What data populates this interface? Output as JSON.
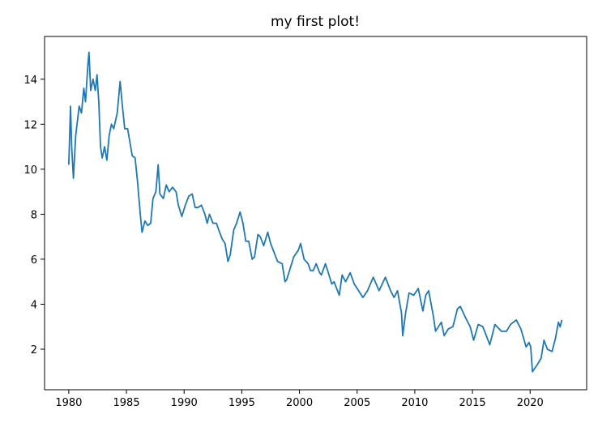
{
  "chart_data": {
    "type": "line",
    "title": "my first plot!",
    "color": "#1f77b4",
    "x": [
      1980.0,
      1980.15,
      1980.25,
      1980.4,
      1980.6,
      1980.9,
      1981.1,
      1981.3,
      1981.45,
      1981.65,
      1981.75,
      1981.9,
      1982.1,
      1982.3,
      1982.45,
      1982.6,
      1982.75,
      1982.9,
      1983.1,
      1983.3,
      1983.5,
      1983.7,
      1983.9,
      1984.2,
      1984.45,
      1984.65,
      1984.85,
      1985.1,
      1985.3,
      1985.5,
      1985.75,
      1985.95,
      1986.2,
      1986.35,
      1986.6,
      1986.85,
      1987.1,
      1987.3,
      1987.55,
      1987.75,
      1987.9,
      1988.2,
      1988.45,
      1988.7,
      1989.0,
      1989.3,
      1989.5,
      1989.8,
      1990.1,
      1990.4,
      1990.7,
      1990.95,
      1991.2,
      1991.5,
      1991.8,
      1992.0,
      1992.2,
      1992.5,
      1992.8,
      1993.0,
      1993.3,
      1993.55,
      1993.8,
      1994.0,
      1994.3,
      1994.55,
      1994.85,
      1995.1,
      1995.35,
      1995.6,
      1995.9,
      1996.1,
      1996.4,
      1996.6,
      1996.9,
      1997.25,
      1997.5,
      1997.8,
      1998.1,
      1998.5,
      1998.75,
      1998.9,
      1999.2,
      1999.5,
      1999.9,
      2000.1,
      2000.4,
      2000.75,
      2000.95,
      2001.2,
      2001.45,
      2001.75,
      2001.9,
      2002.25,
      2002.5,
      2002.8,
      2003.0,
      2003.45,
      2003.7,
      2004.0,
      2004.4,
      2004.75,
      2005.0,
      2005.5,
      2005.9,
      2006.4,
      2006.9,
      2007.45,
      2007.9,
      2008.2,
      2008.5,
      2008.85,
      2008.95,
      2009.2,
      2009.5,
      2009.9,
      2010.3,
      2010.7,
      2010.95,
      2011.2,
      2011.6,
      2011.8,
      2012.3,
      2012.55,
      2012.9,
      2013.3,
      2013.7,
      2013.95,
      2014.4,
      2014.8,
      2015.1,
      2015.5,
      2015.9,
      2016.2,
      2016.5,
      2016.95,
      2017.5,
      2017.95,
      2018.3,
      2018.8,
      2019.2,
      2019.65,
      2019.9,
      2020.05,
      2020.2,
      2020.6,
      2020.95,
      2021.2,
      2021.5,
      2021.9,
      2022.2,
      2022.45,
      2022.6,
      2022.75
    ],
    "values": [
      10.2,
      12.8,
      11.0,
      9.6,
      11.5,
      12.8,
      12.5,
      13.6,
      13.0,
      14.6,
      15.2,
      13.5,
      14.0,
      13.5,
      14.2,
      13.0,
      11.0,
      10.5,
      11.0,
      10.4,
      11.5,
      12.0,
      11.8,
      12.5,
      13.9,
      12.8,
      11.8,
      11.8,
      11.2,
      10.6,
      10.5,
      9.5,
      8.0,
      7.2,
      7.7,
      7.5,
      7.6,
      8.7,
      9.0,
      10.2,
      8.9,
      8.7,
      9.3,
      9.0,
      9.2,
      9.0,
      8.4,
      7.9,
      8.4,
      8.8,
      8.9,
      8.3,
      8.3,
      8.4,
      8.0,
      7.6,
      8.0,
      7.6,
      7.6,
      7.3,
      6.9,
      6.7,
      5.9,
      6.2,
      7.3,
      7.6,
      8.1,
      7.6,
      6.8,
      6.8,
      6.0,
      6.1,
      7.1,
      7.0,
      6.6,
      7.2,
      6.7,
      6.3,
      5.9,
      5.8,
      5.0,
      5.1,
      5.6,
      6.1,
      6.4,
      6.7,
      6.0,
      5.8,
      5.5,
      5.5,
      5.8,
      5.4,
      5.3,
      5.8,
      5.4,
      4.9,
      5.0,
      4.4,
      5.3,
      5.0,
      5.4,
      4.9,
      4.7,
      4.3,
      4.6,
      5.2,
      4.6,
      5.2,
      4.6,
      4.3,
      4.6,
      3.6,
      2.6,
      3.6,
      4.5,
      4.4,
      4.7,
      3.7,
      4.4,
      4.6,
      3.5,
      2.8,
      3.2,
      2.6,
      2.9,
      3.0,
      3.8,
      3.9,
      3.4,
      3.0,
      2.4,
      3.1,
      3.0,
      2.6,
      2.2,
      3.1,
      2.8,
      2.8,
      3.1,
      3.3,
      2.9,
      2.1,
      2.3,
      2.1,
      1.0,
      1.3,
      1.6,
      2.4,
      2.0,
      1.9,
      2.5,
      3.2,
      3.0,
      3.3
    ],
    "xlim": [
      1977.9,
      2024.9
    ],
    "xticks": [
      1980,
      1985,
      1990,
      1995,
      2000,
      2005,
      2010,
      2015,
      2020
    ],
    "ylim": [
      0.2,
      15.9
    ],
    "yticks": [
      2,
      4,
      6,
      8,
      10,
      12,
      14
    ]
  }
}
